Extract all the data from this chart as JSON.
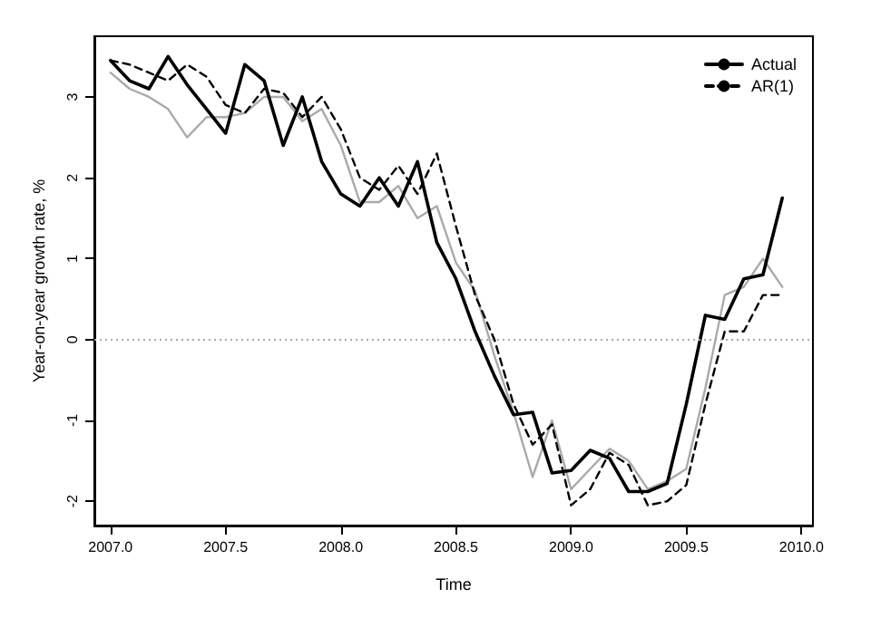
{
  "chart_data": {
    "type": "line",
    "xlabel": "Time",
    "ylabel": "Year-on-year growth rate, %",
    "x": [
      2007.0,
      2007.083,
      2007.167,
      2007.25,
      2007.333,
      2007.417,
      2007.5,
      2007.583,
      2007.667,
      2007.75,
      2007.833,
      2007.917,
      2008.0,
      2008.083,
      2008.167,
      2008.25,
      2008.333,
      2008.417,
      2008.5,
      2008.583,
      2008.667,
      2008.75,
      2008.833,
      2008.917,
      2009.0,
      2009.083,
      2009.167,
      2009.25,
      2009.333,
      2009.417,
      2009.5,
      2009.583,
      2009.667,
      2009.75,
      2009.833,
      2009.917
    ],
    "series": [
      {
        "name": "Actual",
        "color": "#000000",
        "line_style": "solid",
        "values": [
          3.45,
          3.2,
          3.1,
          3.5,
          3.15,
          2.85,
          2.55,
          3.4,
          3.2,
          2.4,
          3.0,
          2.2,
          1.8,
          1.65,
          2.0,
          1.65,
          2.2,
          1.2,
          0.75,
          0.1,
          -0.45,
          -0.93,
          -0.9,
          -1.65,
          -1.62,
          -1.37,
          -1.47,
          -1.88,
          -1.88,
          -1.78,
          -0.8,
          0.3,
          0.25,
          0.75,
          0.8,
          1.75
        ]
      },
      {
        "name": "AR(1)",
        "color": "#000000",
        "line_style": "dashed",
        "values": [
          3.45,
          3.4,
          3.3,
          3.2,
          3.4,
          3.25,
          2.9,
          2.8,
          3.1,
          3.05,
          2.75,
          3.0,
          2.6,
          2.0,
          1.85,
          2.15,
          1.8,
          2.3,
          1.4,
          0.55,
          0.0,
          -0.8,
          -1.3,
          -1.05,
          -2.05,
          -1.85,
          -1.4,
          -1.55,
          -2.05,
          -2.0,
          -1.8,
          -0.8,
          0.1,
          0.1,
          0.55,
          0.55
        ]
      },
      {
        "color": "#aaaaaa",
        "line_style": "solid",
        "values": [
          3.3,
          3.1,
          3.0,
          2.85,
          2.5,
          2.75,
          2.75,
          2.8,
          3.0,
          3.0,
          2.7,
          2.85,
          2.4,
          1.7,
          1.7,
          1.9,
          1.5,
          1.65,
          0.95,
          0.6,
          -0.2,
          -0.9,
          -1.7,
          -1.0,
          -1.85,
          -1.6,
          -1.35,
          -1.5,
          -1.85,
          -1.75,
          -1.6,
          -0.6,
          0.55,
          0.65,
          1.0,
          0.65
        ]
      }
    ],
    "xlim": [
      2006.93,
      2010.05
    ],
    "xticks": [
      {
        "value": 2007.0,
        "label": "2007.0"
      },
      {
        "value": 2007.5,
        "label": "2007.5"
      },
      {
        "value": 2008.0,
        "label": "2008.0"
      },
      {
        "value": 2008.5,
        "label": "2008.5"
      },
      {
        "value": 2009.0,
        "label": "2009.0"
      },
      {
        "value": 2009.5,
        "label": "2009.5"
      },
      {
        "value": 2010.0,
        "label": "2010.0"
      }
    ],
    "ylim": [
      -2.3,
      3.75
    ],
    "yticks": [
      -2,
      -1,
      0,
      1,
      2,
      3
    ],
    "ref_lines": [
      {
        "axis": "y",
        "value": 0,
        "color": "#aaaaaa",
        "line_style": "dotted"
      }
    ],
    "grid": false,
    "legend": "top right",
    "marker": "none"
  }
}
